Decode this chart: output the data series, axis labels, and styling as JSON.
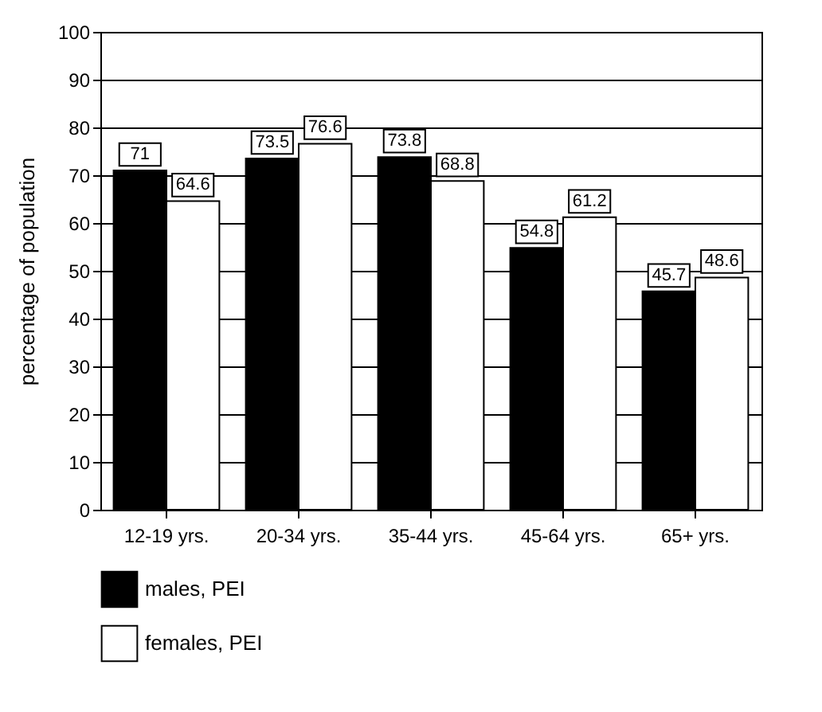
{
  "chart_data": {
    "type": "bar",
    "ylabel": "percentage of population",
    "categories": [
      "12-19 yrs.",
      "20-34 yrs.",
      "35-44 yrs.",
      "45-64 yrs.",
      "65+ yrs."
    ],
    "series": [
      {
        "name": "males, PEI",
        "color": "#000000",
        "values": [
          71,
          73.5,
          73.8,
          54.8,
          45.7
        ]
      },
      {
        "name": "females, PEI",
        "color": "#ffffff",
        "values": [
          64.6,
          76.6,
          68.8,
          61.2,
          48.6
        ]
      }
    ],
    "ylim": [
      0,
      100
    ],
    "yticks": [
      0,
      10,
      20,
      30,
      40,
      50,
      60,
      70,
      80,
      90,
      100
    ],
    "grid": "y",
    "data_labels": true,
    "legend": "bottom"
  }
}
